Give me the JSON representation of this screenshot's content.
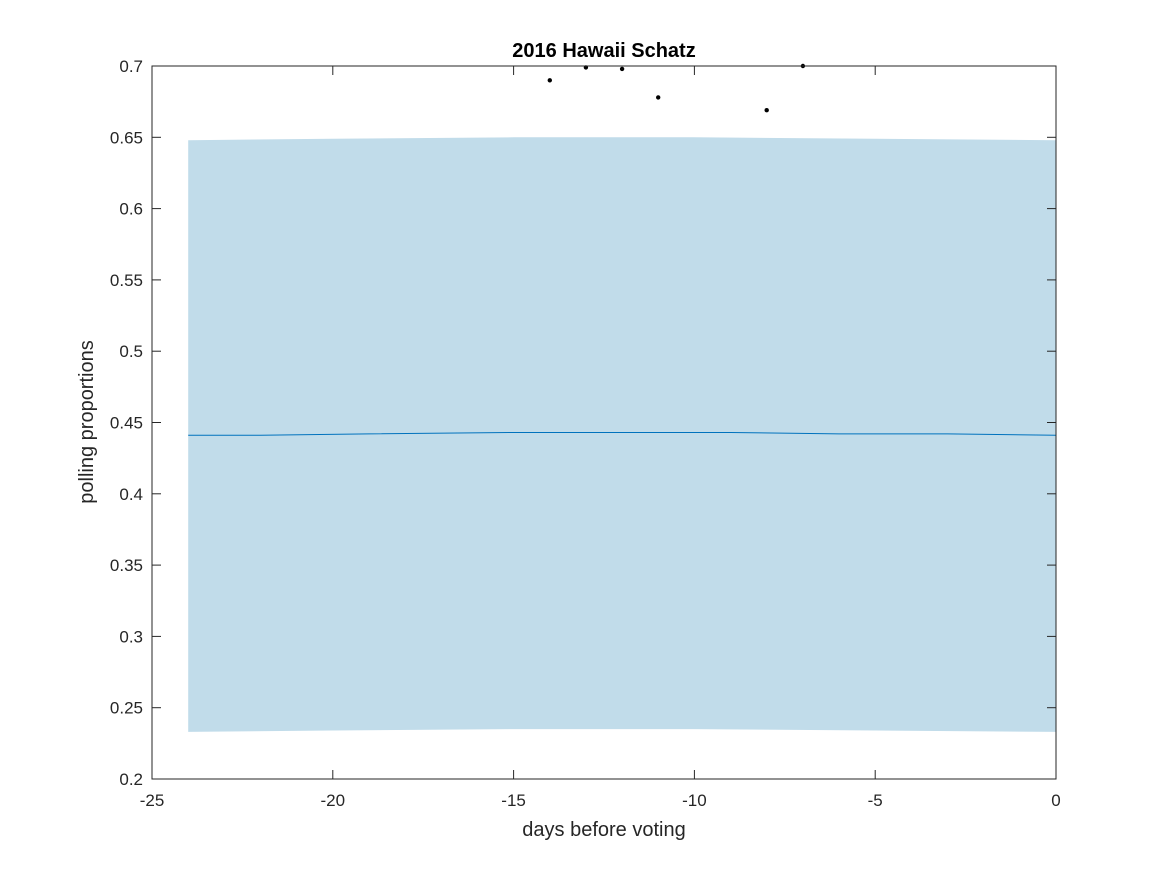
{
  "chart_data": {
    "type": "line",
    "title": "2016 Hawaii Schatz",
    "xlabel": "days before voting",
    "ylabel": "polling proportions",
    "xlim": [
      -25,
      0
    ],
    "ylim": [
      0.2,
      0.7
    ],
    "xticks": [
      -25,
      -20,
      -15,
      -10,
      -5,
      0
    ],
    "xtick_labels": [
      "-25",
      "-20",
      "-15",
      "-10",
      "-5",
      "0"
    ],
    "yticks": [
      0.2,
      0.25,
      0.3,
      0.35,
      0.4,
      0.45,
      0.5,
      0.55,
      0.6,
      0.65,
      0.7
    ],
    "ytick_labels": [
      "0.2",
      "0.25",
      "0.3",
      "0.35",
      "0.4",
      "0.45",
      "0.5",
      "0.55",
      "0.6",
      "0.65",
      "0.7"
    ],
    "grid": false,
    "band": {
      "x": [
        -24,
        -20,
        -15,
        -10,
        -5,
        0
      ],
      "upper": [
        0.648,
        0.649,
        0.65,
        0.65,
        0.649,
        0.648
      ],
      "lower": [
        0.233,
        0.234,
        0.235,
        0.235,
        0.234,
        0.233
      ],
      "color": "#c1dcea"
    },
    "series": [
      {
        "x": [
          -24,
          -22,
          -19,
          -15,
          -12,
          -9,
          -6,
          -3,
          0
        ],
        "values": [
          0.441,
          0.441,
          0.442,
          0.443,
          0.443,
          0.443,
          0.442,
          0.442,
          0.441
        ],
        "color": "#0072bd"
      }
    ],
    "points": {
      "x": [
        -14,
        -13,
        -12,
        -11,
        -8,
        -7
      ],
      "y": [
        0.69,
        0.699,
        0.698,
        0.678,
        0.669,
        0.7
      ],
      "color": "#000000"
    }
  }
}
